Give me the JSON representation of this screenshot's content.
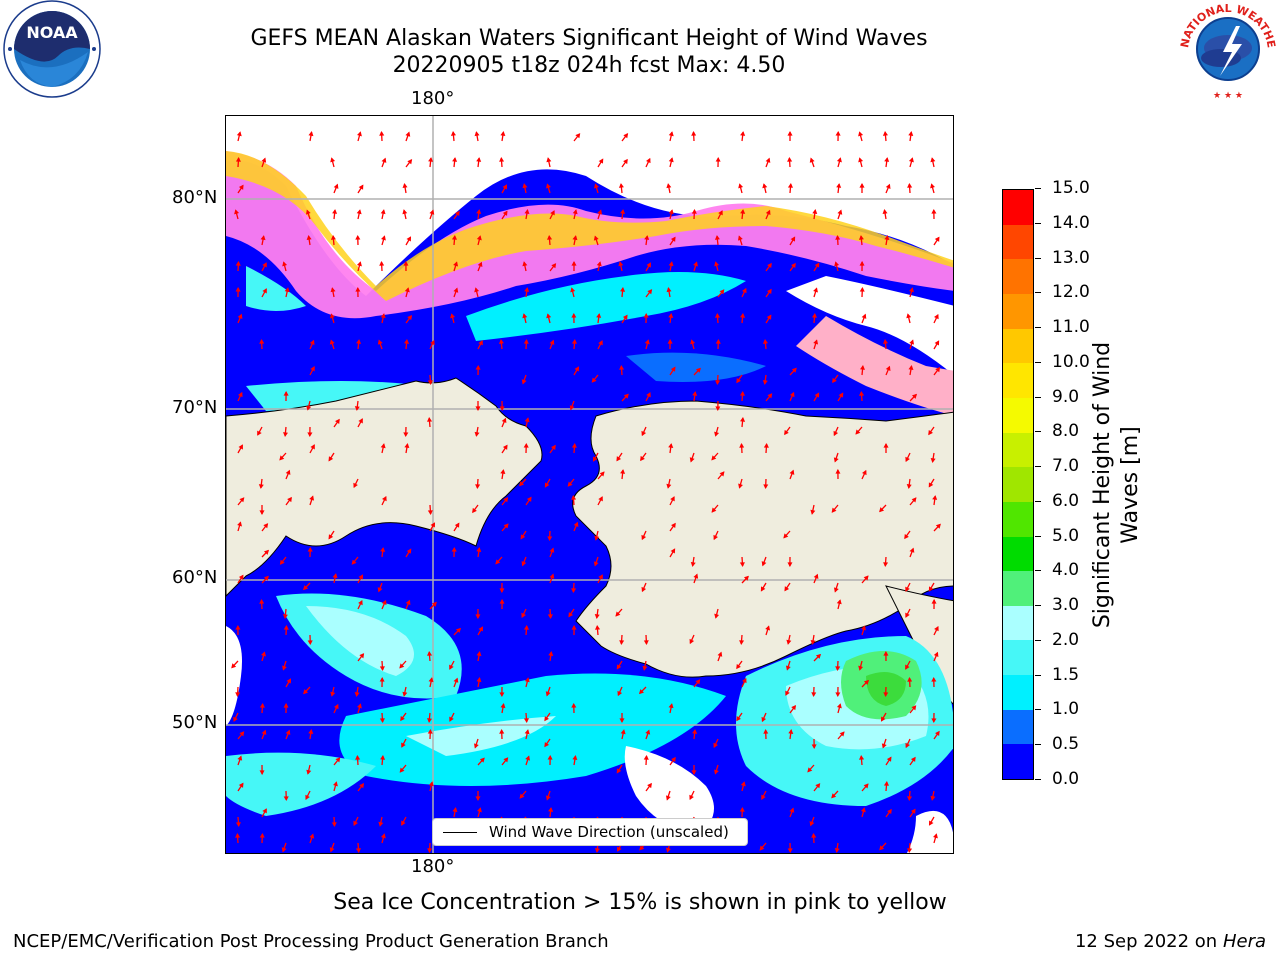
{
  "title": {
    "line1": "GEFS MEAN Alaskan Waters Significant Height of Wind Waves",
    "line2": "20220905 t18z 024h fcst   Max: 4.50"
  },
  "logos": {
    "left": {
      "name": "noaa-logo",
      "text": "NOAA",
      "ring_text": "NATIONAL OCEANIC AND ATMOSPHERIC ADMINISTRATION · U.S. DEPARTMENT OF COMMERCE"
    },
    "right": {
      "name": "nws-logo",
      "ring_text": "NATIONAL WEATHER SERVICE"
    }
  },
  "map": {
    "top_lon_label": "180°",
    "bottom_lon_label": "180°",
    "lat_labels": [
      "80°N",
      "70°N",
      "60°N",
      "50°N"
    ],
    "legend_label": "Wind Wave Direction (unscaled)",
    "arrow_color": "#ff0000",
    "land_color": "#efedde",
    "grid_color": "#b0b0b0"
  },
  "colorbar": {
    "title": "Significant Height of Wind Waves [m]",
    "ticks": [
      "0.0",
      "0.5",
      "1.0",
      "1.5",
      "2.0",
      "3.0",
      "4.0",
      "5.0",
      "6.0",
      "7.0",
      "8.0",
      "9.0",
      "10.0",
      "11.0",
      "12.0",
      "13.0",
      "14.0",
      "15.0"
    ],
    "colors": [
      "#0000ff",
      "#0a6eff",
      "#00f0ff",
      "#46f7f7",
      "#aaffff",
      "#50f07a",
      "#00dc00",
      "#50e600",
      "#a0e600",
      "#c8f000",
      "#f5fa00",
      "#ffe600",
      "#ffc800",
      "#ff9600",
      "#ff7300",
      "#ff4600",
      "#ff0000"
    ]
  },
  "note": "Sea Ice Concentration > 15% is shown in pink to yellow",
  "footer": {
    "left": "NCEP/EMC/Verification Post Processing Product Generation Branch",
    "date": "12 Sep 2022 on",
    "machine": "Hera"
  }
}
